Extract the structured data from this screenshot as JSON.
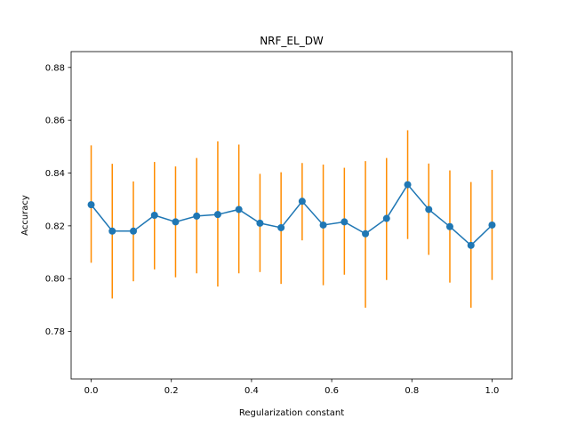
{
  "chart_data": {
    "type": "line",
    "title": "NRF_EL_DW",
    "xlabel": "Regularization constant",
    "ylabel": "Accuracy",
    "xlim": [
      -0.05,
      1.05
    ],
    "ylim": [
      0.762,
      0.886
    ],
    "xticks": [
      0.0,
      0.2,
      0.4,
      0.6,
      0.8,
      1.0
    ],
    "xtick_labels": [
      "0.0",
      "0.2",
      "0.4",
      "0.6",
      "0.8",
      "1.0"
    ],
    "yticks": [
      0.78,
      0.8,
      0.82,
      0.84,
      0.86,
      0.88
    ],
    "ytick_labels": [
      "0.78",
      "0.80",
      "0.82",
      "0.84",
      "0.86",
      "0.88"
    ],
    "grid": false,
    "series": [
      {
        "line_color": "#1f77b4",
        "errorbar_color": "#ff8c00",
        "x": [
          0.0,
          0.0526,
          0.1053,
          0.1579,
          0.2105,
          0.2632,
          0.3158,
          0.3684,
          0.4211,
          0.4737,
          0.5263,
          0.5789,
          0.6316,
          0.6842,
          0.7368,
          0.7895,
          0.8421,
          0.8947,
          0.9474,
          1.0
        ],
        "y": [
          0.828,
          0.818,
          0.818,
          0.824,
          0.8215,
          0.8237,
          0.8243,
          0.8262,
          0.821,
          0.8193,
          0.8293,
          0.8203,
          0.8215,
          0.817,
          0.8228,
          0.8356,
          0.8262,
          0.8197,
          0.8126,
          0.8203
        ],
        "yerr_low": [
          0.806,
          0.7925,
          0.799,
          0.8035,
          0.8005,
          0.802,
          0.797,
          0.802,
          0.8025,
          0.798,
          0.8145,
          0.7975,
          0.8015,
          0.789,
          0.7995,
          0.815,
          0.809,
          0.7985,
          0.789,
          0.7995
        ],
        "yerr_high": [
          0.8505,
          0.8435,
          0.8368,
          0.8442,
          0.8425,
          0.8457,
          0.852,
          0.8508,
          0.8397,
          0.8403,
          0.8438,
          0.8432,
          0.842,
          0.8445,
          0.8457,
          0.8562,
          0.8436,
          0.841,
          0.8366,
          0.8412
        ]
      }
    ]
  }
}
